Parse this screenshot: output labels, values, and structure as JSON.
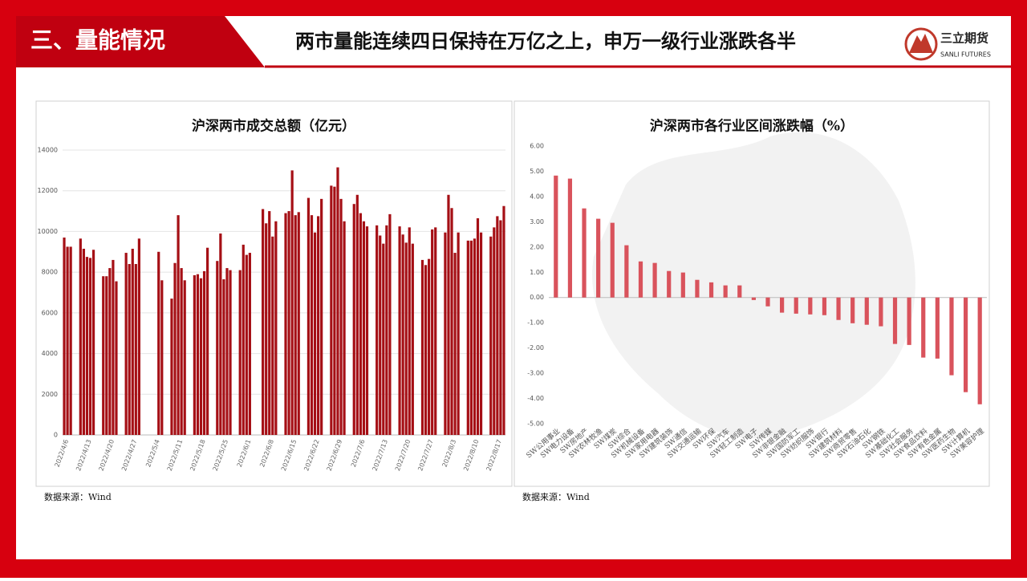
{
  "header": {
    "section": "三、量能情况",
    "title": "两市量能连续四日保持在万亿之上，申万一级行业涨跌各半",
    "logo_cn": "三立期货",
    "logo_en": "SANLI FUTURES"
  },
  "chart_data": [
    {
      "type": "bar",
      "title": "沪深两市成交总额（亿元）",
      "source": "数据来源：Wind",
      "color": "#a50f15",
      "grid": true,
      "x": [
        "2022/4/6",
        "2022/4/7",
        "2022/4/8",
        "2022/4/11",
        "2022/4/12",
        "2022/4/13",
        "2022/4/14",
        "2022/4/15",
        "2022/4/18",
        "2022/4/19",
        "2022/4/20",
        "2022/4/21",
        "2022/4/22",
        "2022/4/25",
        "2022/4/26",
        "2022/4/27",
        "2022/4/28",
        "2022/4/29",
        "2022/5/5",
        "2022/5/6",
        "2022/5/9",
        "2022/5/10",
        "2022/5/11",
        "2022/5/12",
        "2022/5/13",
        "2022/5/16",
        "2022/5/17",
        "2022/5/18",
        "2022/5/19",
        "2022/5/20",
        "2022/5/23",
        "2022/5/24",
        "2022/5/25",
        "2022/5/26",
        "2022/5/27",
        "2022/5/30",
        "2022/5/31",
        "2022/6/1",
        "2022/6/2",
        "2022/6/6",
        "2022/6/7",
        "2022/6/8",
        "2022/6/9",
        "2022/6/10",
        "2022/6/13",
        "2022/6/14",
        "2022/6/15",
        "2022/6/16",
        "2022/6/17",
        "2022/6/20",
        "2022/6/21",
        "2022/6/22",
        "2022/6/23",
        "2022/6/24",
        "2022/6/27",
        "2022/6/28",
        "2022/6/29",
        "2022/6/30",
        "2022/7/1",
        "2022/7/4",
        "2022/7/5",
        "2022/7/6",
        "2022/7/7",
        "2022/7/8",
        "2022/7/11",
        "2022/7/12",
        "2022/7/13",
        "2022/7/14",
        "2022/7/15",
        "2022/7/18",
        "2022/7/19",
        "2022/7/20",
        "2022/7/21",
        "2022/7/22",
        "2022/7/25",
        "2022/7/26",
        "2022/7/27",
        "2022/7/28",
        "2022/7/29",
        "2022/8/1",
        "2022/8/2",
        "2022/8/3",
        "2022/8/4",
        "2022/8/5",
        "2022/8/8",
        "2022/8/9",
        "2022/8/10",
        "2022/8/11",
        "2022/8/12",
        "2022/8/15",
        "2022/8/16",
        "2022/8/17",
        "2022/8/18",
        "2022/8/19"
      ],
      "values": [
        9700,
        9250,
        9250,
        9650,
        9150,
        8750,
        8700,
        9100,
        7800,
        7800,
        8200,
        8600,
        7550,
        8950,
        8400,
        9150,
        8400,
        9650,
        9000,
        7600,
        6700,
        8450,
        10800,
        8200,
        7600,
        7850,
        7900,
        7700,
        8050,
        9200,
        8550,
        9900,
        7650,
        8200,
        8100,
        8100,
        9350,
        8850,
        8950,
        11100,
        10400,
        11000,
        9750,
        10500,
        10900,
        11000,
        13000,
        10800,
        10950,
        11650,
        10800,
        9950,
        10750,
        11600,
        12250,
        12200,
        13150,
        11600,
        10500,
        11350,
        11800,
        10900,
        10500,
        10250,
        10300,
        9800,
        9400,
        10300,
        10850,
        10250,
        9850,
        9450,
        10200,
        9400,
        8600,
        8350,
        8650,
        10100,
        10200,
        9950,
        11800,
        11150,
        8950,
        9950,
        9550,
        9550,
        9650,
        10650,
        9950,
        9750,
        10200,
        10750,
        10550,
        11250
      ],
      "xticks": [
        "2022/4/6",
        "2022/4/13",
        "2022/4/20",
        "2022/4/27",
        "2022/5/4",
        "2022/5/11",
        "2022/5/18",
        "2022/5/25",
        "2022/6/1",
        "2022/6/8",
        "2022/6/15",
        "2022/6/22",
        "2022/6/29",
        "2022/7/6",
        "2022/7/13",
        "2022/7/20",
        "2022/7/27",
        "2022/8/3",
        "2022/8/10",
        "2022/8/17"
      ],
      "ylim": [
        0,
        14000
      ],
      "yticks": [
        0,
        2000,
        4000,
        6000,
        8000,
        10000,
        12000,
        14000
      ]
    },
    {
      "type": "bar",
      "title": "沪深两市各行业区间涨跌幅（%）",
      "source": "数据来源：Wind",
      "color": "#d9535c",
      "grid": false,
      "categories": [
        "SW公用事业",
        "SW电力设备",
        "SW房地产",
        "SW农林牧渔",
        "SW煤炭",
        "SW综合",
        "SW机械设备",
        "SW家用电器",
        "SW建筑装饰",
        "SW通信",
        "SW交通运输",
        "SW环保",
        "SW汽车",
        "SW轻工制造",
        "SW电子",
        "SW传媒",
        "SW非银金融",
        "SW国防军工",
        "SW纺织服饰",
        "SW银行",
        "SW建筑材料",
        "SW商贸零售",
        "SW石油石化",
        "SW钢铁",
        "SW基础化工",
        "SW社会服务",
        "SW食品饮料",
        "SW有色金属",
        "SW医药生物",
        "SW计算机",
        "SW美容护理"
      ],
      "values": [
        4.83,
        4.71,
        3.53,
        3.12,
        2.96,
        2.07,
        1.43,
        1.37,
        1.05,
        0.99,
        0.7,
        0.6,
        0.48,
        0.48,
        -0.1,
        -0.35,
        -0.6,
        -0.64,
        -0.67,
        -0.7,
        -0.89,
        -1.02,
        -1.08,
        -1.14,
        -1.84,
        -1.88,
        -2.38,
        -2.42,
        -3.08,
        -3.75,
        -4.23
      ],
      "ylim": [
        -5,
        6
      ],
      "yticks": [
        {
          "value": 6,
          "label": "6.00"
        },
        {
          "value": 5,
          "label": "5.00"
        },
        {
          "value": 4,
          "label": "4.00"
        },
        {
          "value": 3,
          "label": "3.00"
        },
        {
          "value": 2,
          "label": "2.00"
        },
        {
          "value": 1,
          "label": "1.00"
        },
        {
          "value": 0,
          "label": "0.00"
        },
        {
          "value": -1,
          "label": "-1.00"
        },
        {
          "value": -2,
          "label": "-2.00"
        },
        {
          "value": -3,
          "label": "-3.00"
        },
        {
          "value": -4,
          "label": "-4.00"
        },
        {
          "value": -5,
          "label": "-5.00"
        }
      ]
    }
  ]
}
